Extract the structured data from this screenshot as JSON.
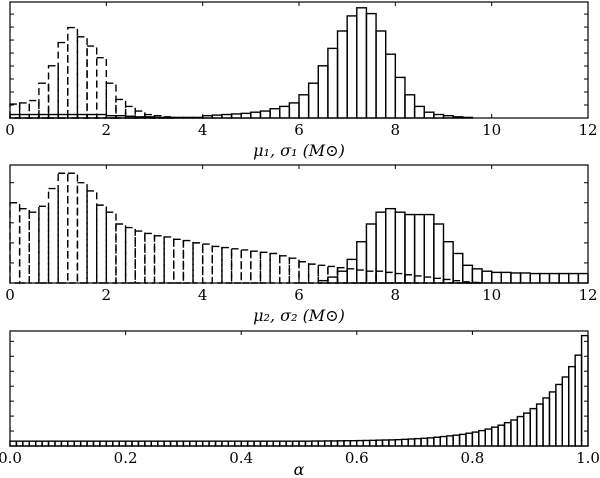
{
  "chart_data": [
    {
      "type": "bar",
      "xlabel": "μ₁, σ₁ (M⊙)",
      "xlim": [
        0,
        12
      ],
      "ylim": [
        0,
        1
      ],
      "xticks": [
        0,
        2,
        4,
        6,
        8,
        10,
        12
      ],
      "xtick_labels": [
        "0",
        "2",
        "4",
        "6",
        "8",
        "10",
        "12"
      ],
      "ytick_step": 0.112,
      "bin_start": 0,
      "bin_width": 0.2,
      "grid": false,
      "series": [
        {
          "style": "solid",
          "values": [
            0.03,
            0.03,
            0.03,
            0.03,
            0.03,
            0.03,
            0.03,
            0.03,
            0.03,
            0.03,
            0.02,
            0.02,
            0.015,
            0.01,
            0.01,
            0.005,
            0.005,
            0.005,
            0.005,
            0.005,
            0.02,
            0.025,
            0.03,
            0.035,
            0.04,
            0.05,
            0.06,
            0.08,
            0.1,
            0.13,
            0.2,
            0.3,
            0.45,
            0.6,
            0.75,
            0.88,
            0.95,
            0.9,
            0.75,
            0.55,
            0.35,
            0.2,
            0.1,
            0.05,
            0.03,
            0.02,
            0.01,
            0.005,
            0,
            0,
            0,
            0,
            0,
            0,
            0,
            0,
            0,
            0,
            0,
            0
          ]
        },
        {
          "style": "dashed",
          "values": [
            0.12,
            0.13,
            0.15,
            0.3,
            0.45,
            0.65,
            0.78,
            0.7,
            0.62,
            0.52,
            0.3,
            0.16,
            0.1,
            0.06,
            0.03,
            0.02,
            0.01,
            0,
            0,
            0,
            0,
            0,
            0,
            0,
            0,
            0,
            0,
            0,
            0,
            0,
            0,
            0,
            0,
            0,
            0,
            0,
            0,
            0,
            0,
            0,
            0,
            0,
            0,
            0,
            0,
            0,
            0,
            0,
            0,
            0,
            0,
            0,
            0,
            0,
            0,
            0,
            0,
            0,
            0,
            0
          ]
        }
      ]
    },
    {
      "type": "bar",
      "xlabel": "μ₂, σ₂ (M⊙)",
      "xlim": [
        0,
        12
      ],
      "ylim": [
        0,
        1
      ],
      "xticks": [
        0,
        2,
        4,
        6,
        8,
        10,
        12
      ],
      "xtick_labels": [
        "0",
        "2",
        "4",
        "6",
        "8",
        "10",
        "12"
      ],
      "ytick_step": 0.17,
      "bin_start": 0,
      "bin_width": 0.2,
      "grid": false,
      "series": [
        {
          "style": "solid",
          "values": [
            0,
            0,
            0,
            0,
            0,
            0,
            0,
            0,
            0,
            0,
            0,
            0,
            0,
            0,
            0,
            0,
            0,
            0,
            0,
            0,
            0,
            0,
            0,
            0,
            0,
            0,
            0,
            0,
            0,
            0,
            0,
            0,
            0.02,
            0.05,
            0.1,
            0.2,
            0.35,
            0.5,
            0.6,
            0.63,
            0.6,
            0.58,
            0.58,
            0.58,
            0.5,
            0.35,
            0.25,
            0.15,
            0.12,
            0.1,
            0.09,
            0.09,
            0.085,
            0.085,
            0.08,
            0.08,
            0.08,
            0.08,
            0.08,
            0.08
          ]
        },
        {
          "style": "dashed",
          "values": [
            0.68,
            0.63,
            0.6,
            0.65,
            0.8,
            0.93,
            0.93,
            0.85,
            0.78,
            0.66,
            0.6,
            0.5,
            0.47,
            0.44,
            0.42,
            0.4,
            0.39,
            0.37,
            0.36,
            0.34,
            0.33,
            0.31,
            0.3,
            0.29,
            0.28,
            0.27,
            0.26,
            0.25,
            0.23,
            0.21,
            0.18,
            0.16,
            0.15,
            0.14,
            0.13,
            0.12,
            0.11,
            0.1,
            0.1,
            0.09,
            0.08,
            0.07,
            0.06,
            0.05,
            0.04,
            0.03,
            0.02,
            0.01,
            0.005,
            0,
            0,
            0,
            0,
            0,
            0,
            0,
            0,
            0,
            0,
            0
          ]
        }
      ]
    },
    {
      "type": "bar",
      "xlabel": "α",
      "xlim": [
        0,
        1
      ],
      "ylim": [
        0,
        1
      ],
      "xticks": [
        0,
        0.2,
        0.4,
        0.6,
        0.8,
        1.0
      ],
      "xtick_labels": [
        "0.0",
        "0.2",
        "0.4",
        "0.6",
        "0.8",
        "1.0"
      ],
      "ytick_step": 0.13,
      "bin_start": 0,
      "bin_width": 0.011111,
      "grid": false,
      "series": [
        {
          "style": "solid",
          "values": [
            0.042,
            0.042,
            0.042,
            0.042,
            0.042,
            0.042,
            0.042,
            0.042,
            0.042,
            0.042,
            0.042,
            0.042,
            0.042,
            0.042,
            0.042,
            0.042,
            0.042,
            0.042,
            0.042,
            0.042,
            0.042,
            0.042,
            0.042,
            0.042,
            0.042,
            0.042,
            0.042,
            0.042,
            0.042,
            0.042,
            0.042,
            0.042,
            0.042,
            0.042,
            0.042,
            0.042,
            0.042,
            0.042,
            0.042,
            0.042,
            0.042,
            0.042,
            0.042,
            0.042,
            0.042,
            0.042,
            0.042,
            0.043,
            0.043,
            0.044,
            0.044,
            0.045,
            0.046,
            0.046,
            0.047,
            0.048,
            0.049,
            0.051,
            0.052,
            0.053,
            0.055,
            0.058,
            0.061,
            0.064,
            0.067,
            0.071,
            0.076,
            0.082,
            0.088,
            0.094,
            0.101,
            0.111,
            0.121,
            0.134,
            0.147,
            0.164,
            0.181,
            0.203,
            0.226,
            0.256,
            0.286,
            0.325,
            0.365,
            0.418,
            0.47,
            0.535,
            0.6,
            0.69,
            0.79,
            0.96
          ]
        }
      ]
    }
  ]
}
